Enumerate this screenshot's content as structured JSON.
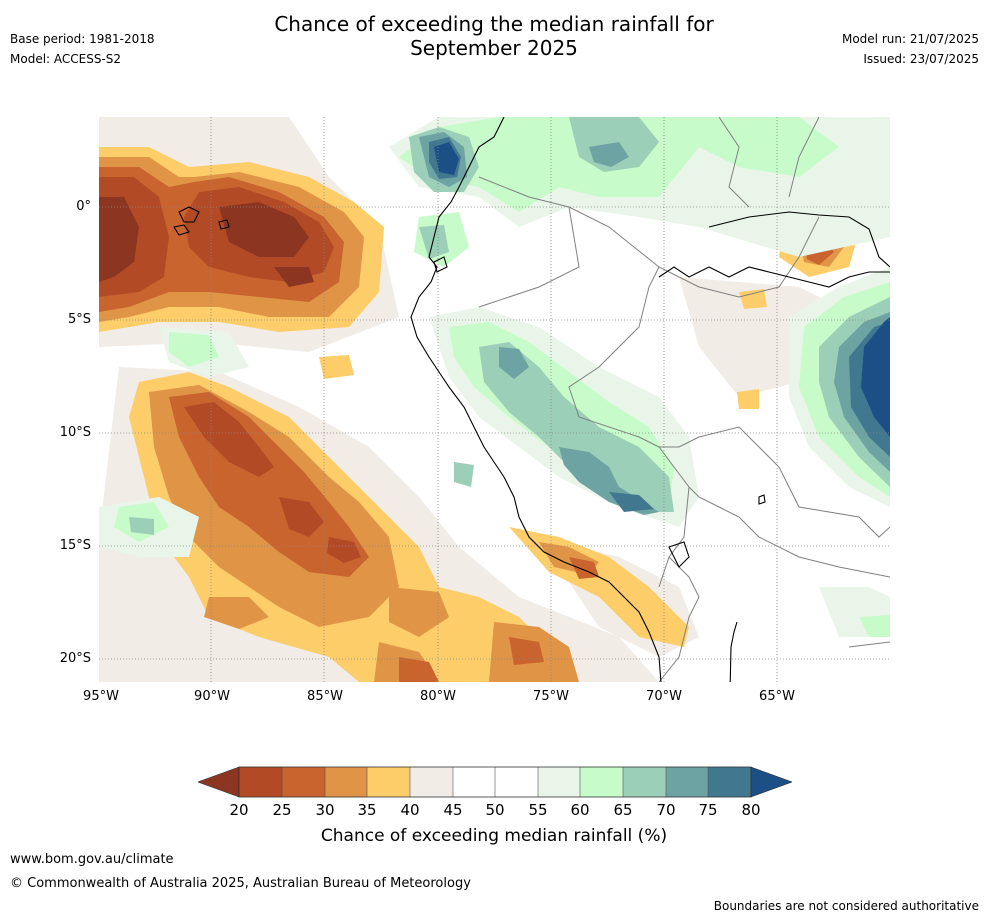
{
  "header": {
    "title_line1": "Chance of exceeding the median rainfall for",
    "title_line2": "September 2025",
    "base_period": "Base period: 1981-2018",
    "model": "Model: ACCESS-S2",
    "model_run": "Model run: 21/07/2025",
    "issued": "Issued: 23/07/2025"
  },
  "map": {
    "lat_labels": [
      "0°",
      "5°S",
      "10°S",
      "15°S",
      "20°S"
    ],
    "lon_labels": [
      "95°W",
      "90°W",
      "85°W",
      "80°W",
      "75°W",
      "70°W",
      "65°W"
    ],
    "land_color": "#ffffff",
    "coast_color": "#000000",
    "border_color": "#808080"
  },
  "colorbar": {
    "label": "Chance of exceeding median rainfall (%)",
    "ticks": [
      "20",
      "25",
      "30",
      "35",
      "40",
      "45",
      "50",
      "55",
      "60",
      "65",
      "70",
      "75",
      "80"
    ],
    "colors": {
      "below_20": "#8c3520",
      "20-25": "#b24a26",
      "25-30": "#c9642f",
      "30-35": "#e09446",
      "35-40": "#fdcd6a",
      "40-45": "#f1ece6",
      "45-50": "#ffffff",
      "50-55": "#ffffff",
      "55-60": "#e9f5e9",
      "60-65": "#c7fbc9",
      "65-70": "#9ccfb8",
      "70-75": "#6da3a2",
      "75-80": "#41778f",
      "above_80": "#1b4f86"
    }
  },
  "footer": {
    "url": "www.bom.gov.au/climate",
    "copyright": "© Commonwealth of Australia 2025, Australian Bureau of Meteorology",
    "disclaimer": "Boundaries are not considered authoritative"
  }
}
